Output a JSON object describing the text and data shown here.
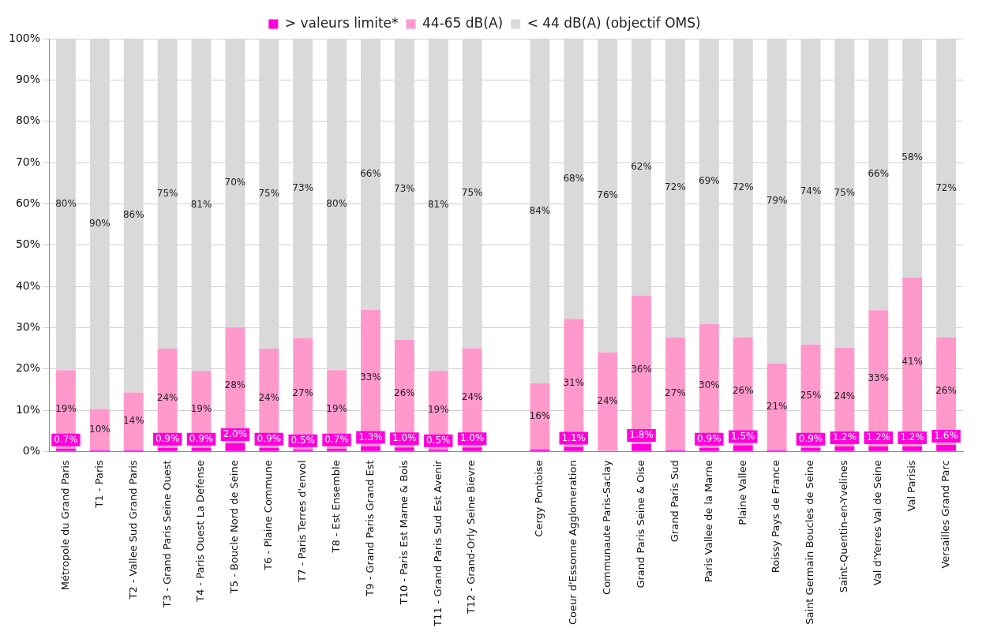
{
  "chart_data": {
    "type": "bar",
    "stacked": true,
    "categories": [
      "Métropole du Grand Paris",
      "T1 - Paris",
      "T2 - Vallee Sud Grand Paris",
      "T3 - Grand Paris Seine Ouest",
      "T4 - Paris Ouest La Defense",
      "T5 - Boucle Nord de Seine",
      "T6 - Plaine Commune",
      "T7 - Paris Terres d'envol",
      "T8 - Est Ensemble",
      "T9 - Grand Paris Grand Est",
      "T10 - Paris Est Marne & Bois",
      "T11 - Grand Paris Sud Est Avenir",
      "T12 - Grand-Orly Seine Bievre",
      null,
      "Cergy Pontoise",
      "Coeur d'Essonne Agglomeration",
      "Communaute Paris-Saclay",
      "Grand Paris Seine & Oise",
      "Grand Paris Sud",
      "Paris Vallee de la Marne",
      "Plaine Vallee",
      "Roissy Pays de France",
      "Saint Germain Boucles de Seine",
      "Saint-Quentin-en-Yvelines",
      "Val d'Yerres Val de Seine",
      "Val Parisis",
      "Versailles Grand Parc"
    ],
    "series": [
      {
        "name": "> valeurs limite*",
        "color": "#ff00dd",
        "values": [
          0.7,
          0.3,
          0.3,
          0.9,
          0.9,
          2.0,
          0.9,
          0.5,
          0.7,
          1.3,
          1.0,
          0.5,
          1.0,
          null,
          0.5,
          1.1,
          null,
          1.8,
          0.3,
          0.9,
          1.5,
          0.3,
          0.9,
          1.2,
          1.2,
          1.2,
          1.6
        ],
        "value_labels": [
          "0.7%",
          null,
          null,
          "0.9%",
          "0.9%",
          "2.0%",
          "0.9%",
          "0.5%",
          "0.7%",
          "1.3%",
          "1.0%",
          "0.5%",
          "1.0%",
          null,
          null,
          "1.1%",
          null,
          "1.8%",
          null,
          "0.9%",
          "1.5%",
          null,
          "0.9%",
          "1.2%",
          "1.2%",
          "1.2%",
          "1.6%"
        ]
      },
      {
        "name": "44-65 dB(A)",
        "color": "#ff99cc",
        "values": [
          19,
          10,
          14,
          24,
          18.6,
          28,
          24,
          27,
          19,
          33,
          26,
          19,
          24,
          null,
          16,
          31,
          24,
          36,
          27.4,
          30,
          26.2,
          21,
          25,
          24,
          33,
          41,
          26
        ],
        "value_labels": [
          "19%",
          "10%",
          "14%",
          "24%",
          "19%",
          "28%",
          "24%",
          "27%",
          "19%",
          "33%",
          "26%",
          "19%",
          "24%",
          null,
          "16%",
          "31%",
          "24%",
          "36%",
          "27%",
          "30%",
          "26%",
          "21%",
          "25%",
          "24%",
          "33%",
          "41%",
          "26%"
        ]
      },
      {
        "name": "< 44 dB(A) (objectif OMS)",
        "color": "#d9d9d9",
        "values": [
          80.3,
          89.7,
          85.7,
          75.1,
          80.5,
          70,
          75.1,
          72.5,
          80.3,
          65.7,
          73,
          80.5,
          75,
          null,
          83.5,
          67.9,
          75.9,
          62.2,
          72.3,
          69.1,
          72.3,
          78.7,
          74.1,
          74.8,
          65.8,
          57.8,
          72.4
        ],
        "value_labels": [
          "80%",
          "90%",
          "86%",
          "75%",
          "81%",
          "70%",
          "75%",
          "73%",
          "80%",
          "66%",
          "73%",
          "81%",
          "75%",
          null,
          "84%",
          "68%",
          "76%",
          "62%",
          "72%",
          "69%",
          "72%",
          "79%",
          "74%",
          "75%",
          "66%",
          "58%",
          "72%"
        ]
      }
    ],
    "ylim": [
      0,
      100
    ],
    "yticks": [
      {
        "value": 0,
        "label": "0%"
      },
      {
        "value": 10,
        "label": "10%"
      },
      {
        "value": 20,
        "label": "20%"
      },
      {
        "value": 30,
        "label": "30%"
      },
      {
        "value": 40,
        "label": "40%"
      },
      {
        "value": 50,
        "label": "50%"
      },
      {
        "value": 60,
        "label": "60%"
      },
      {
        "value": 70,
        "label": "70%"
      },
      {
        "value": 80,
        "label": "80%"
      },
      {
        "value": 90,
        "label": "90%"
      },
      {
        "value": 100,
        "label": "100%"
      }
    ],
    "grid": "y",
    "legend": "top"
  }
}
